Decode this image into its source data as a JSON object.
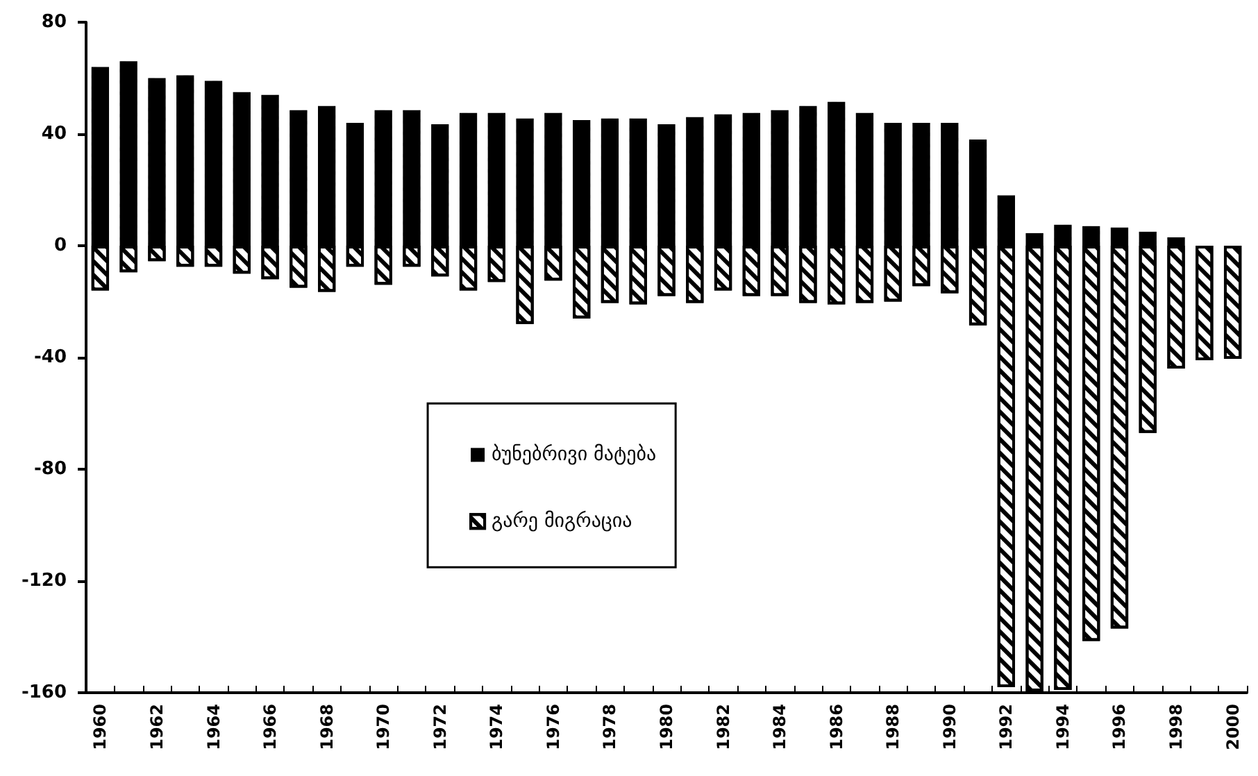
{
  "chart_data": {
    "type": "bar",
    "categories": [
      "1960",
      null,
      "1962",
      null,
      "1964",
      null,
      "1966",
      null,
      "1968",
      null,
      "1970",
      null,
      "1972",
      null,
      "1974",
      null,
      "1976",
      null,
      "1978",
      null,
      "1980",
      null,
      "1982",
      null,
      "1984",
      null,
      "1986",
      null,
      "1988",
      null,
      "1990",
      null,
      "1992",
      null,
      "1994",
      null,
      "1996",
      null,
      "1998",
      null,
      "2000"
    ],
    "series": [
      {
        "name": "ბუნებრივი მატება",
        "color": "#000000",
        "values": [
          64,
          66,
          60,
          61,
          59,
          55,
          54,
          48.5,
          50,
          44,
          48.5,
          48.5,
          43.5,
          47.5,
          47.5,
          45.5,
          47.5,
          45,
          45.5,
          45.5,
          43.5,
          46,
          47,
          47.5,
          48.5,
          50,
          51.5,
          47.5,
          44,
          44,
          44,
          38,
          18,
          4.5,
          7.5,
          7,
          6.5,
          5,
          3,
          0,
          0
        ]
      },
      {
        "name": "გარე მიგრაცია",
        "color": "#ffffff",
        "values": [
          -16,
          -9.5,
          -5.5,
          -7.5,
          -7.5,
          -10,
          -12,
          -15,
          -16.5,
          -7.5,
          -14,
          -7.5,
          -11,
          -16,
          -13,
          -28,
          -12.5,
          -26,
          -20.5,
          -21,
          -18,
          -20.5,
          -16,
          -18,
          -18,
          -20.5,
          -21,
          -20.5,
          -20,
          -14.5,
          -17,
          -28.5,
          -158,
          -159.5,
          -159,
          -141.5,
          -137,
          -67,
          -44,
          -41,
          -40.5
        ]
      }
    ],
    "ylim": [
      -160,
      80
    ],
    "yticks": [
      -160,
      -120,
      -80,
      -40,
      0,
      40,
      80
    ],
    "grid": false,
    "legend": "center",
    "stacked": true
  }
}
